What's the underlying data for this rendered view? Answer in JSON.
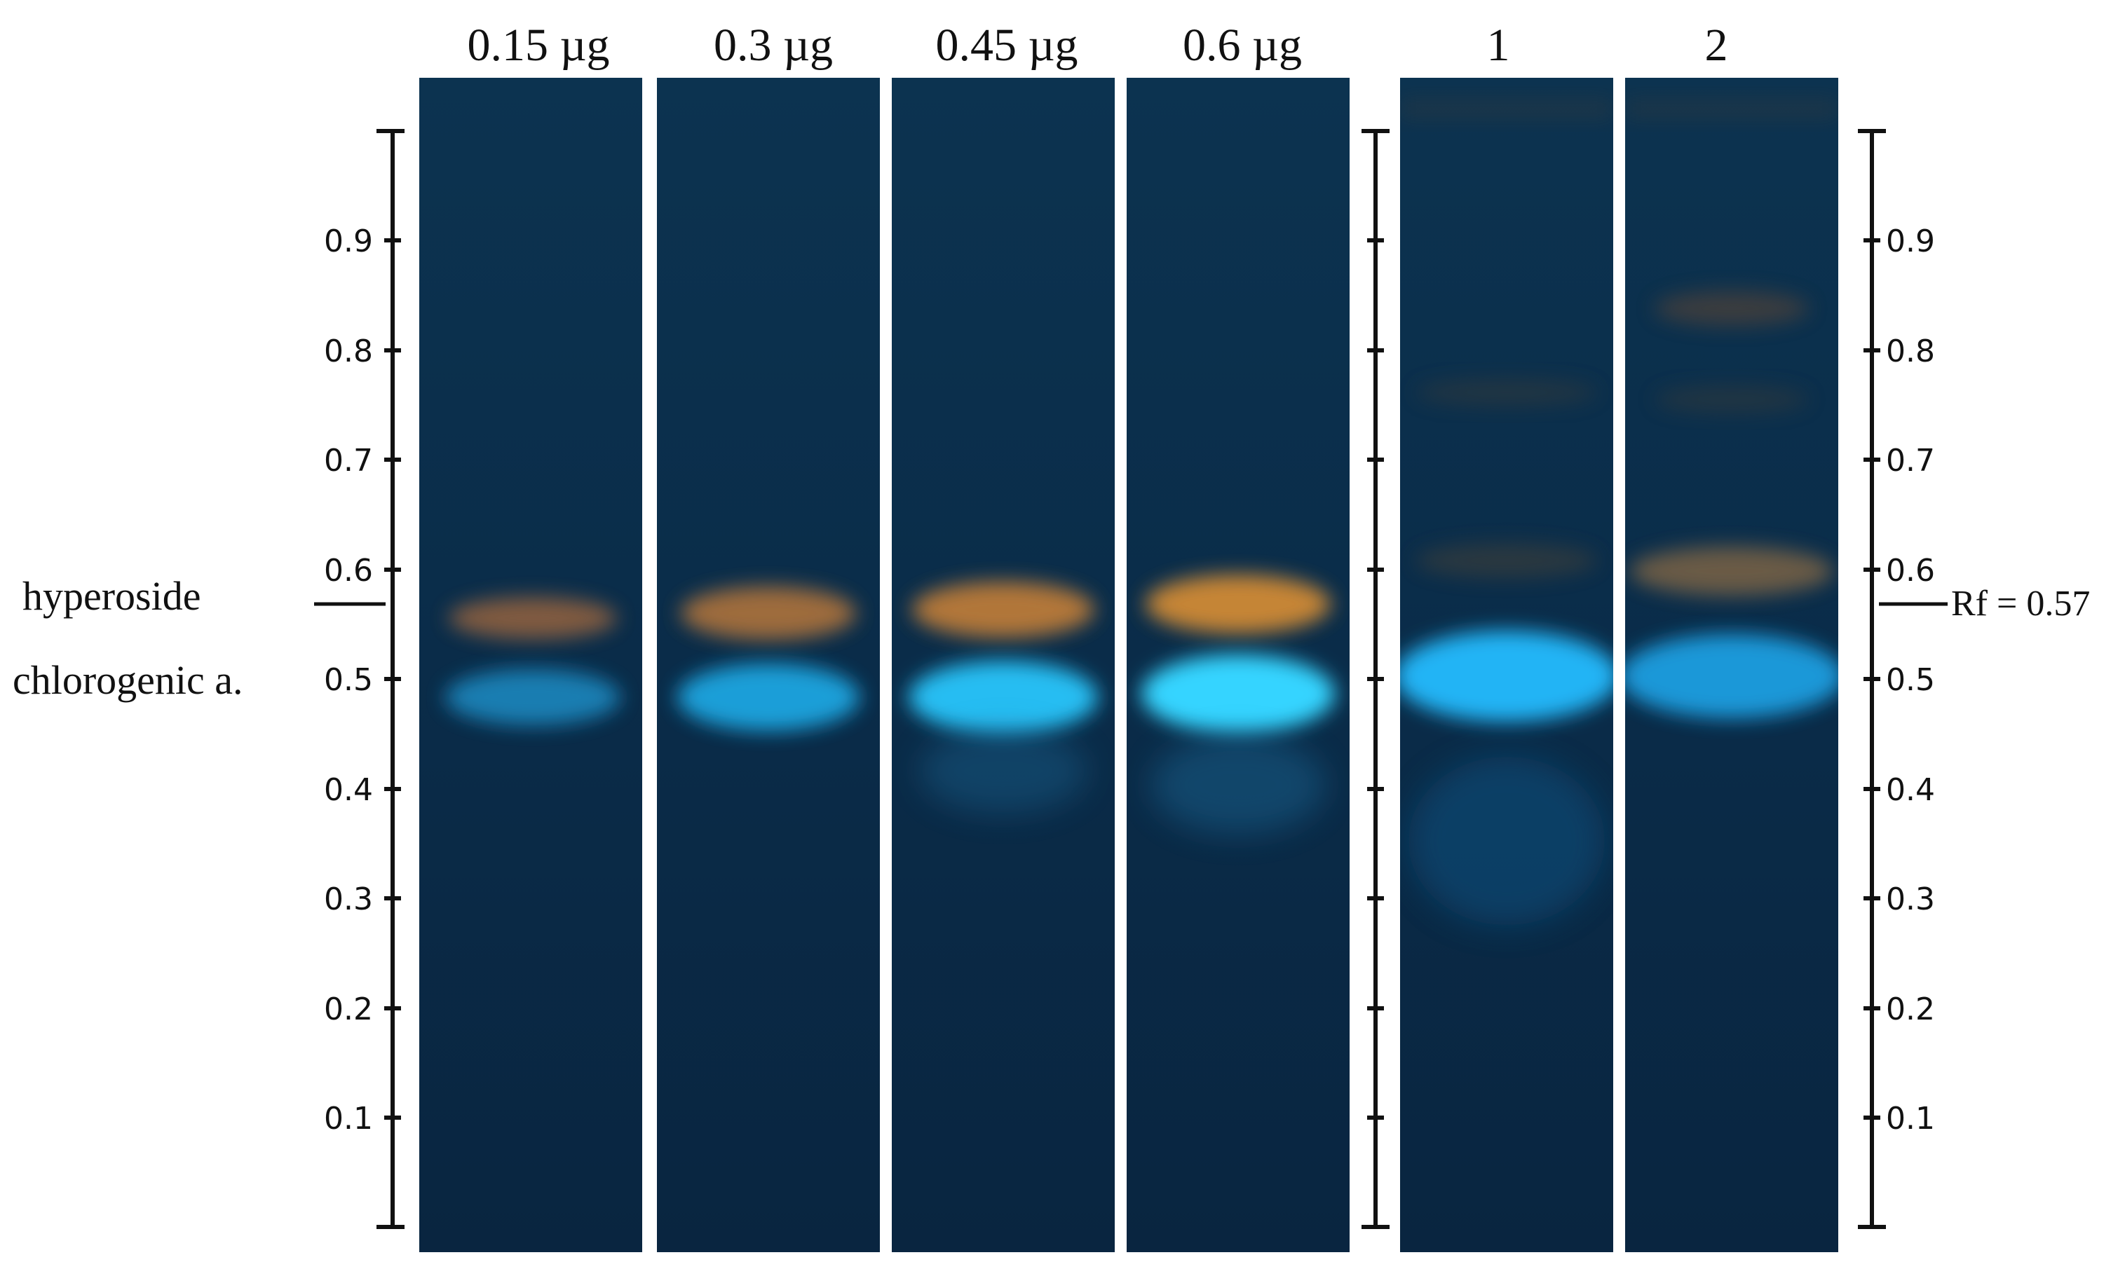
{
  "figure": {
    "standard_lanes": [
      "0.15 µg",
      "0.3 µg",
      "0.45 µg",
      "0.6 µg"
    ],
    "sample_lanes": [
      "1",
      "2"
    ],
    "scale_ticks": [
      "0.1",
      "0.2",
      "0.3",
      "0.4",
      "0.5",
      "0.6",
      "0.7",
      "0.8",
      "0.9"
    ],
    "compound_labels": {
      "hyperoside": "hyperoside",
      "chlorogenic": "chlorogenic a."
    },
    "rf_annotation": "Rf = 0.57",
    "colors": {
      "plate": "#0b2a45",
      "orange_band": "#c8823a",
      "blue_band": "#1fb6f0",
      "ink": "#111111"
    }
  }
}
